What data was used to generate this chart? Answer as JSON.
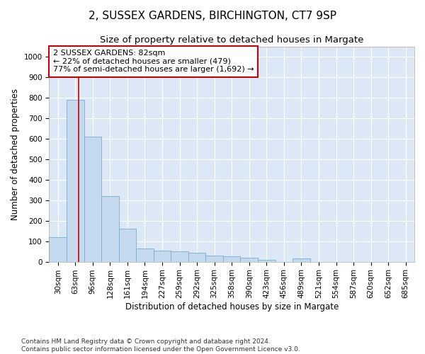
{
  "title": "2, SUSSEX GARDENS, BIRCHINGTON, CT7 9SP",
  "subtitle": "Size of property relative to detached houses in Margate",
  "xlabel": "Distribution of detached houses by size in Margate",
  "ylabel": "Number of detached properties",
  "bins": [
    "30sqm",
    "63sqm",
    "96sqm",
    "128sqm",
    "161sqm",
    "194sqm",
    "227sqm",
    "259sqm",
    "292sqm",
    "325sqm",
    "358sqm",
    "390sqm",
    "423sqm",
    "456sqm",
    "489sqm",
    "521sqm",
    "554sqm",
    "587sqm",
    "620sqm",
    "652sqm",
    "685sqm"
  ],
  "bar_values": [
    120,
    790,
    610,
    320,
    160,
    65,
    55,
    50,
    45,
    30,
    25,
    20,
    10,
    0,
    15,
    0,
    0,
    0,
    0,
    0,
    0
  ],
  "bar_color": "#c5d9ee",
  "bar_edge_color": "#7aadd4",
  "red_line_x": 1.2,
  "annotation_text": "2 SUSSEX GARDENS: 82sqm\n← 22% of detached houses are smaller (479)\n77% of semi-detached houses are larger (1,692) →",
  "annotation_box_color": "#ffffff",
  "annotation_box_edge_color": "#cc0000",
  "red_line_color": "#cc0000",
  "ylim": [
    0,
    1050
  ],
  "yticks": [
    0,
    100,
    200,
    300,
    400,
    500,
    600,
    700,
    800,
    900,
    1000
  ],
  "background_color": "#dce8f5",
  "footer_text": "Contains HM Land Registry data © Crown copyright and database right 2024.\nContains public sector information licensed under the Open Government Licence v3.0.",
  "title_fontsize": 11,
  "subtitle_fontsize": 9.5,
  "axis_label_fontsize": 8.5,
  "tick_fontsize": 7.5,
  "annotation_fontsize": 8
}
